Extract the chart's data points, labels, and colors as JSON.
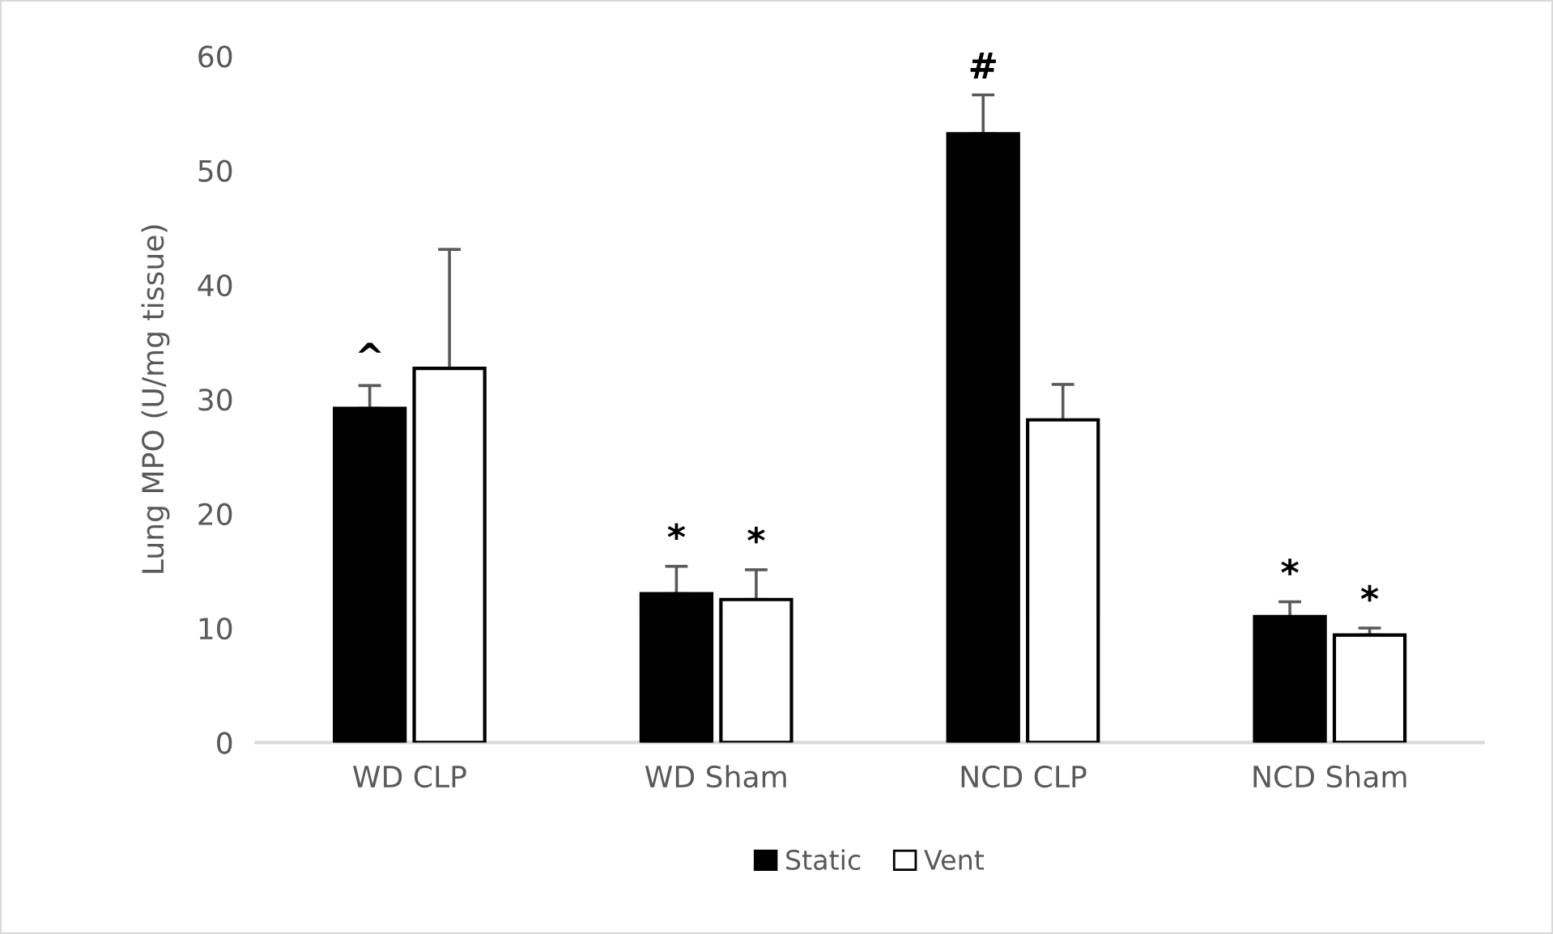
{
  "chart_data": {
    "type": "bar",
    "ylabel": "Lung MPO (U/mg tissue)",
    "categories": [
      "WD CLP",
      "WD Sham",
      "NCD CLP",
      "NCD Sham"
    ],
    "series": [
      {
        "name": "Static",
        "color": "#000000",
        "values": [
          29.2,
          13.0,
          53.2,
          11.0
        ],
        "errors": [
          [
            29.2,
            31.2
          ],
          [
            13.0,
            15.4
          ],
          [
            53.2,
            56.6
          ],
          [
            11.0,
            12.3
          ]
        ],
        "value_labels": [
          "^",
          "*",
          "#",
          "*"
        ]
      },
      {
        "name": "Vent",
        "color": "#ffffff",
        "values": [
          32.7,
          12.5,
          28.2,
          9.4
        ],
        "errors": [
          [
            32.7,
            43.1
          ],
          [
            12.5,
            15.1
          ],
          [
            28.2,
            31.3
          ],
          [
            9.4,
            10.0
          ]
        ],
        "value_labels": [
          null,
          "*",
          null,
          "*"
        ]
      }
    ],
    "ylim": [
      0,
      60
    ],
    "yticks": [
      0,
      10,
      20,
      30,
      40,
      50,
      60
    ],
    "grid": false,
    "legend": "bottom"
  }
}
